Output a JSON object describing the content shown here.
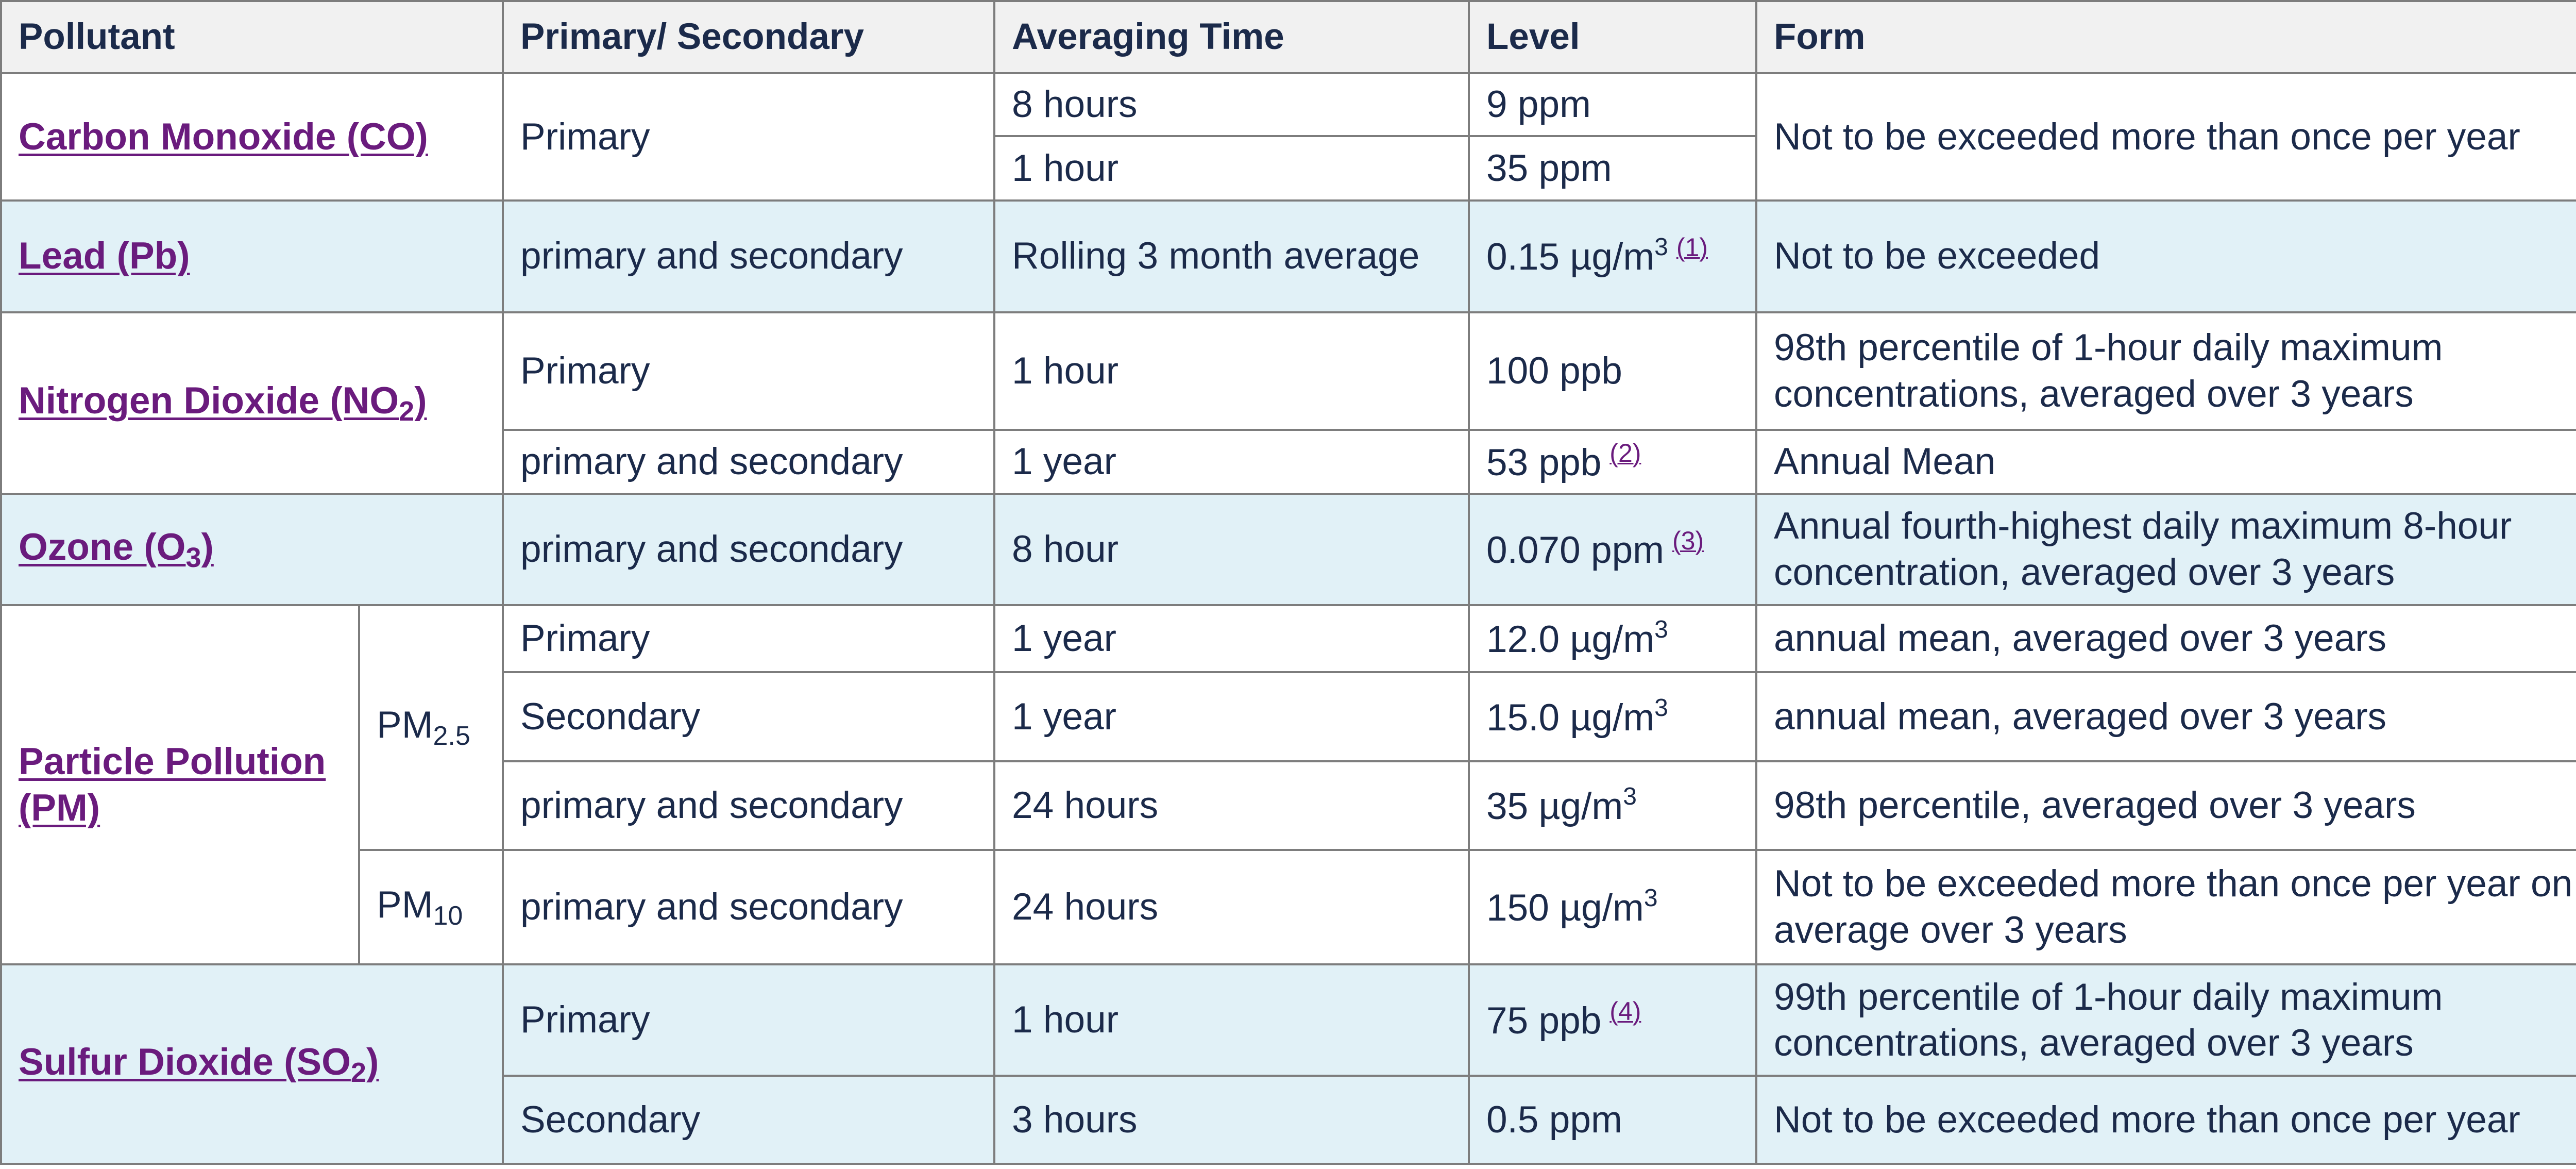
{
  "headers": {
    "pollutant": "Pollutant",
    "type": "Primary/ Secondary",
    "averaging_time": "Averaging Time",
    "level": "Level",
    "form": "Form"
  },
  "co": {
    "name": "Carbon Monoxide (CO)",
    "type": "Primary",
    "rows": [
      {
        "time": "8 hours",
        "level": "9 ppm"
      },
      {
        "time": "1 hour",
        "level": "35 ppm"
      }
    ],
    "form": "Not to be exceeded more than once per year"
  },
  "lead": {
    "name": "Lead (Pb)",
    "type": "primary and secondary",
    "time": "Rolling 3 month average",
    "level": "0.15 µg/m",
    "level_sup": "3",
    "footnote": "(1)",
    "form": "Not to be exceeded"
  },
  "no2": {
    "name_prefix": "Nitrogen Dioxide (NO",
    "name_sub": "2",
    "name_suffix": ")",
    "rows": [
      {
        "type": "Primary",
        "time": "1 hour",
        "level": "100 ppb",
        "form": "98th percentile of 1-hour daily maximum concentrations, averaged over 3 years"
      },
      {
        "type": "primary and secondary",
        "time": "1 year",
        "level": "53 ppb",
        "footnote": "(2)",
        "form": "Annual Mean"
      }
    ]
  },
  "ozone": {
    "name_prefix": "Ozone (O",
    "name_sub": "3",
    "name_suffix": ")",
    "type": "primary and secondary",
    "time": "8 hour",
    "level": "0.070 ppm",
    "footnote": "(3)",
    "form": "Annual fourth-highest daily maximum 8-hour concentration, averaged over 3 years"
  },
  "pm": {
    "name": "Particle Pollution (PM)",
    "pm25_label": "PM",
    "pm25_sub": "2.5",
    "pm10_label": "PM",
    "pm10_sub": "10",
    "unit_sup": "3",
    "pm25_rows": [
      {
        "type": "Primary",
        "time": "1 year",
        "level": "12.0 µg/m",
        "form": "annual mean, averaged over 3 years"
      },
      {
        "type": "Secondary",
        "time": "1 year",
        "level": "15.0 µg/m",
        "form": "annual mean, averaged over 3 years"
      },
      {
        "type": "primary and secondary",
        "time": "24 hours",
        "level": "35 µg/m",
        "form": "98th percentile, averaged over 3 years"
      }
    ],
    "pm10_row": {
      "type": "primary and secondary",
      "time": "24 hours",
      "level": "150 µg/m",
      "form": "Not to be exceeded more than once per year on average over 3 years"
    }
  },
  "so2": {
    "name_prefix": "Sulfur Dioxide (SO",
    "name_sub": "2",
    "name_suffix": ")",
    "rows": [
      {
        "type": "Primary",
        "time": "1 hour",
        "level": "75 ppb",
        "footnote": "(4)",
        "form": "99th percentile of 1-hour daily maximum concentrations, averaged over 3 years"
      },
      {
        "type": "Secondary",
        "time": "3 hours",
        "level": "0.5 ppm",
        "form": "Not to be exceeded more than once per year"
      }
    ]
  },
  "colors": {
    "link": "#6a1b7d",
    "row_shade": "#e1f1f7",
    "header_bg": "#f1f1f1",
    "border": "#7d7d7d",
    "text": "#1b2a4a"
  }
}
